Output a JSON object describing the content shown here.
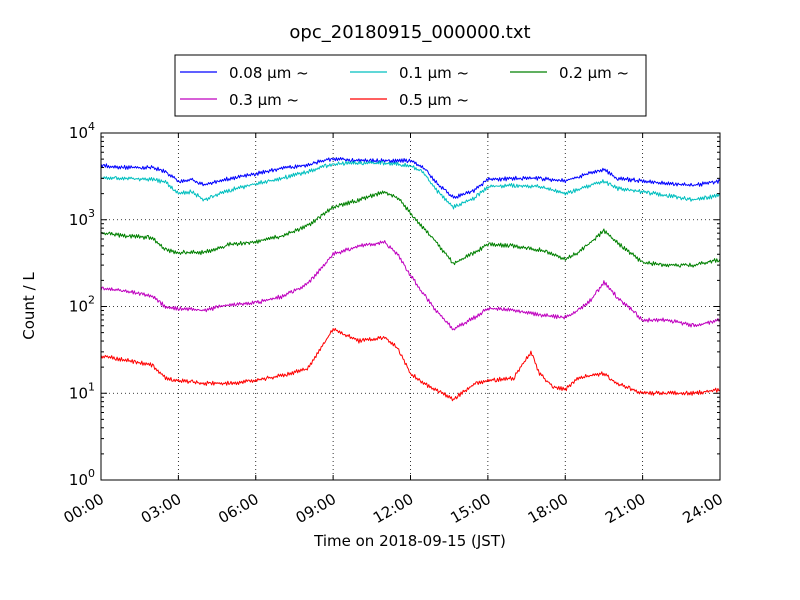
{
  "chart_data": {
    "type": "line",
    "title": "opc_20180915_000000.txt",
    "xlabel": "Time on 2018-09-15 (JST)",
    "ylabel": "Count / L",
    "yscale": "log",
    "xlim": [
      "00:00",
      "24:00"
    ],
    "ylim": [
      1,
      10000
    ],
    "x_ticks": [
      "00:00",
      "03:00",
      "06:00",
      "09:00",
      "12:00",
      "15:00",
      "18:00",
      "21:00",
      "24:00"
    ],
    "y_ticks": [
      {
        "base": "10",
        "exp": "0"
      },
      {
        "base": "10",
        "exp": "1"
      },
      {
        "base": "10",
        "exp": "2"
      },
      {
        "base": "10",
        "exp": "3"
      },
      {
        "base": "10",
        "exp": "4"
      }
    ],
    "grid": true,
    "legend_position": "top-center-outside",
    "series": [
      {
        "name": "0.08 μm ~",
        "color": "#0000ff",
        "x": [
          "00:00",
          "01:00",
          "02:00",
          "02:30",
          "03:00",
          "03:30",
          "04:00",
          "05:00",
          "06:00",
          "07:00",
          "08:00",
          "09:00",
          "10:00",
          "11:00",
          "12:00",
          "12:30",
          "13:00",
          "13:40",
          "14:30",
          "15:00",
          "16:00",
          "17:00",
          "18:00",
          "19:00",
          "19:30",
          "20:00",
          "21:00",
          "22:00",
          "23:00",
          "24:00"
        ],
        "values": [
          4200,
          4000,
          4000,
          3600,
          2800,
          2900,
          2500,
          3000,
          3400,
          3900,
          4300,
          5100,
          4800,
          4800,
          4800,
          4000,
          2700,
          1800,
          2200,
          2900,
          3000,
          3000,
          2800,
          3500,
          3800,
          3000,
          2800,
          2600,
          2500,
          2800
        ]
      },
      {
        "name": "0.1 μm ~",
        "color": "#00bfbf",
        "x": [
          "00:00",
          "01:00",
          "02:00",
          "02:30",
          "03:00",
          "03:30",
          "04:00",
          "05:00",
          "06:00",
          "07:00",
          "08:00",
          "09:00",
          "10:00",
          "11:00",
          "12:00",
          "12:30",
          "13:00",
          "13:40",
          "14:30",
          "15:00",
          "16:00",
          "17:00",
          "18:00",
          "19:00",
          "19:30",
          "20:00",
          "21:00",
          "22:00",
          "23:00",
          "24:00"
        ],
        "values": [
          3000,
          3000,
          2900,
          2700,
          2000,
          2100,
          1700,
          2200,
          2600,
          3000,
          3600,
          4400,
          4500,
          4500,
          4200,
          3500,
          2200,
          1400,
          1800,
          2400,
          2500,
          2400,
          2000,
          2500,
          2800,
          2300,
          2100,
          1900,
          1700,
          1900
        ]
      },
      {
        "name": "0.2 μm ~",
        "color": "#008000",
        "x": [
          "00:00",
          "01:00",
          "02:00",
          "02:30",
          "03:00",
          "04:00",
          "05:00",
          "06:00",
          "07:00",
          "08:00",
          "09:00",
          "10:00",
          "11:00",
          "11:30",
          "12:00",
          "12:30",
          "13:00",
          "13:40",
          "14:30",
          "15:00",
          "16:00",
          "17:00",
          "18:00",
          "18:30",
          "19:00",
          "19:30",
          "20:00",
          "21:00",
          "22:00",
          "23:00",
          "24:00"
        ],
        "values": [
          700,
          650,
          620,
          450,
          420,
          420,
          520,
          560,
          650,
          850,
          1400,
          1700,
          2100,
          1800,
          1200,
          800,
          550,
          310,
          420,
          520,
          500,
          450,
          350,
          420,
          550,
          750,
          550,
          320,
          300,
          300,
          350
        ]
      },
      {
        "name": "0.3 μm ~",
        "color": "#bf00bf",
        "x": [
          "00:00",
          "01:00",
          "02:00",
          "02:30",
          "03:00",
          "04:00",
          "05:00",
          "06:00",
          "07:00",
          "08:00",
          "09:00",
          "10:00",
          "11:00",
          "11:30",
          "12:00",
          "12:30",
          "13:00",
          "13:40",
          "14:30",
          "15:00",
          "16:00",
          "17:00",
          "18:00",
          "18:30",
          "19:00",
          "19:30",
          "20:00",
          "21:00",
          "22:00",
          "23:00",
          "24:00"
        ],
        "values": [
          160,
          150,
          130,
          100,
          95,
          90,
          105,
          110,
          130,
          180,
          400,
          500,
          550,
          400,
          230,
          140,
          90,
          55,
          75,
          95,
          90,
          80,
          75,
          90,
          120,
          190,
          130,
          70,
          70,
          60,
          70
        ]
      },
      {
        "name": "0.5 μm ~",
        "color": "#ff0000",
        "x": [
          "00:00",
          "01:00",
          "02:00",
          "02:30",
          "03:00",
          "04:00",
          "05:00",
          "06:00",
          "07:00",
          "08:00",
          "09:00",
          "10:00",
          "11:00",
          "11:30",
          "12:00",
          "12:30",
          "13:00",
          "13:40",
          "14:30",
          "15:00",
          "16:00",
          "16:40",
          "17:00",
          "17:30",
          "18:00",
          "18:30",
          "19:00",
          "19:30",
          "20:00",
          "21:00",
          "22:00",
          "23:00",
          "24:00"
        ],
        "values": [
          27,
          24,
          21,
          15,
          14,
          13,
          13,
          14,
          16,
          19,
          55,
          40,
          44,
          33,
          17,
          13,
          11,
          8.5,
          13,
          14,
          15,
          30,
          17,
          12,
          11,
          15,
          16,
          17,
          13,
          10,
          10,
          10,
          11
        ]
      }
    ]
  }
}
